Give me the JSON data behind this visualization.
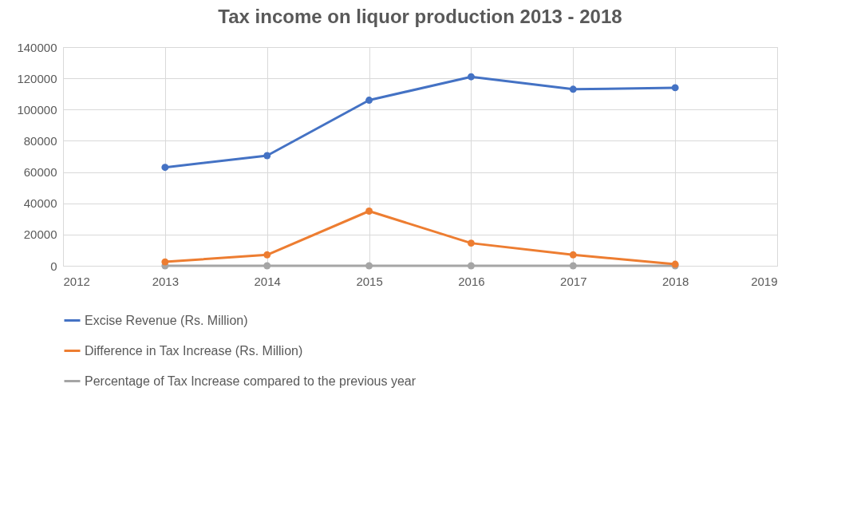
{
  "chart_data": {
    "type": "line",
    "title": "Tax income on liquor production 2013 - 2018",
    "x": [
      2013,
      2014,
      2015,
      2016,
      2017,
      2018
    ],
    "series": [
      {
        "name": "Excise Revenue (Rs. Million)",
        "color": "#4472c4",
        "values": [
          63000,
          70500,
          106000,
          121000,
          113000,
          114000
        ]
      },
      {
        "name": "Difference in Tax Increase (Rs. Million)",
        "color": "#ed7d31",
        "values": [
          2500,
          7000,
          35000,
          14500,
          7000,
          1000
        ]
      },
      {
        "name": "Percentage of Tax Increase compared to the previous year",
        "color": "#a5a5a5",
        "values": [
          0,
          0,
          0,
          0,
          0,
          0
        ]
      }
    ],
    "xlim": [
      2012,
      2019
    ],
    "xticks": [
      2012,
      2013,
      2014,
      2015,
      2016,
      2017,
      2018,
      2019
    ],
    "ylim": [
      0,
      140000
    ],
    "yticks": [
      0,
      20000,
      40000,
      60000,
      80000,
      100000,
      120000,
      140000
    ],
    "grid": true,
    "legend": "bottom",
    "marker": "circle",
    "line_style": "solid"
  }
}
